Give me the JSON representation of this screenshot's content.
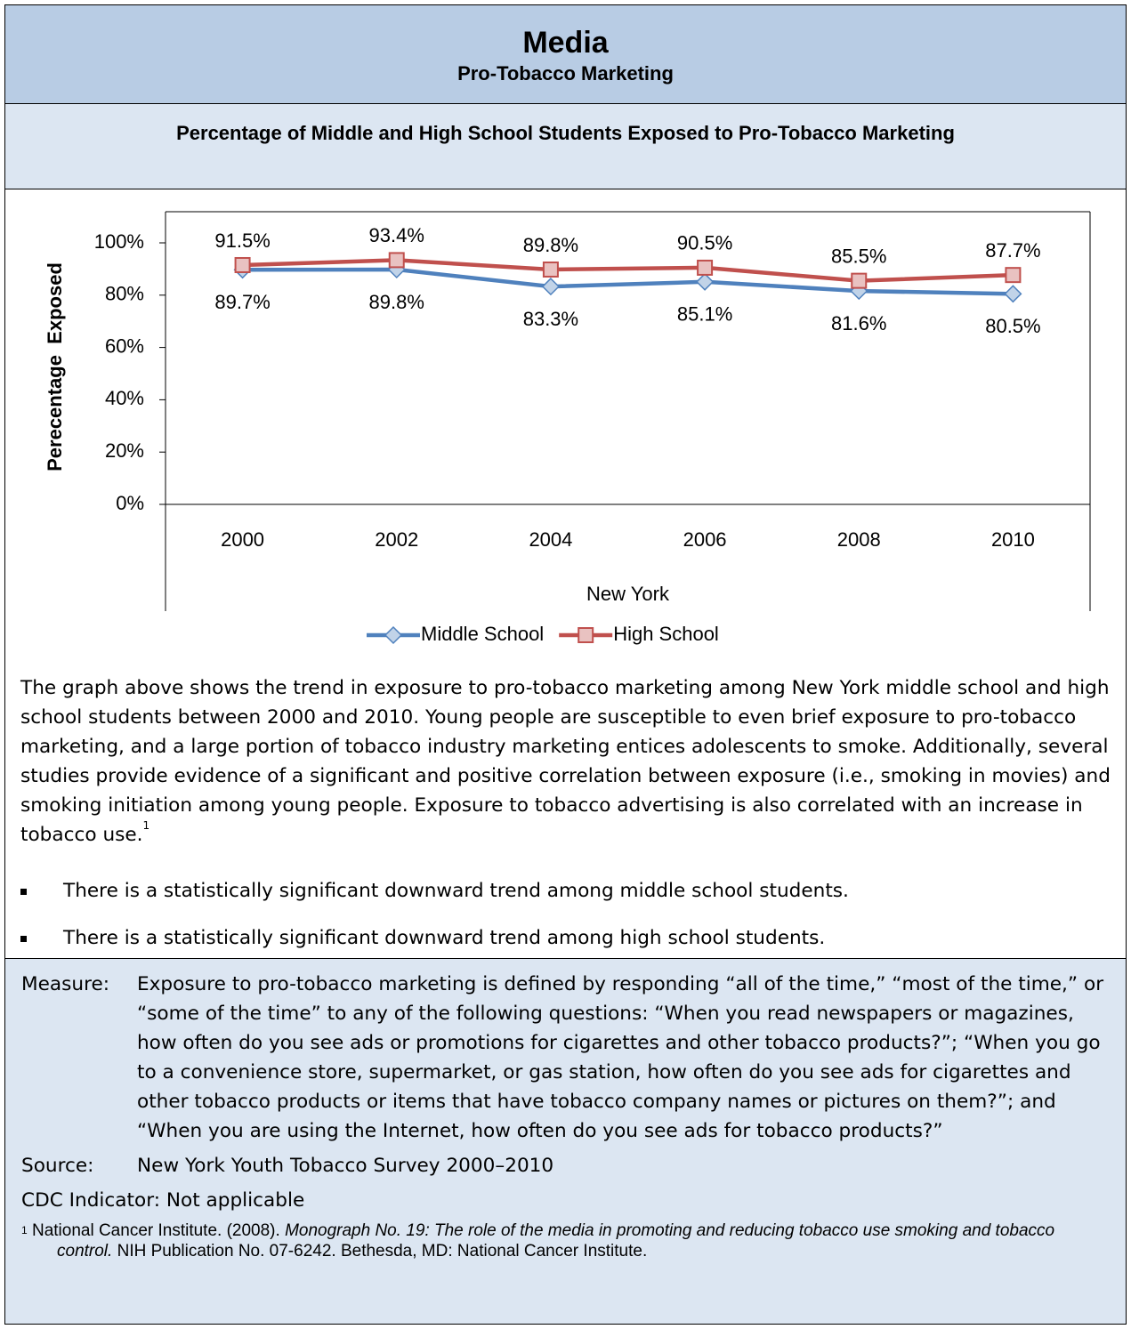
{
  "header": {
    "title": "Media",
    "subtitle": "Pro-Tobacco Marketing"
  },
  "chart_data": {
    "type": "line",
    "title": "Percentage of Middle and High School Students Exposed to Pro-Tobacco Marketing",
    "x_label": "New York",
    "y_label": "Perecentage  Exposed",
    "categories": [
      "2000",
      "2002",
      "2004",
      "2006",
      "2008",
      "2010"
    ],
    "series": [
      {
        "name": "Middle School",
        "color": "#4f81bd",
        "values": [
          89.7,
          89.8,
          83.3,
          85.1,
          81.6,
          80.5
        ],
        "value_labels": [
          "89.7%",
          "89.8%",
          "83.3%",
          "85.1%",
          "81.6%",
          "80.5%"
        ]
      },
      {
        "name": "High School",
        "color": "#c0504d",
        "values": [
          91.5,
          93.4,
          89.8,
          90.5,
          85.5,
          87.7
        ],
        "value_labels": [
          "91.5%",
          "93.4%",
          "89.8%",
          "90.5%",
          "85.5%",
          "87.7%"
        ]
      }
    ],
    "ylim": [
      0,
      100
    ],
    "yticks": [
      {
        "value": 0,
        "label": "0%"
      },
      {
        "value": 20,
        "label": "20%"
      },
      {
        "value": 40,
        "label": "40%"
      },
      {
        "value": 60,
        "label": "60%"
      },
      {
        "value": 80,
        "label": "80%"
      },
      {
        "value": 100,
        "label": "100%"
      }
    ],
    "legend": "bottom"
  },
  "body": {
    "paragraph": "The graph above shows the trend in exposure to pro-tobacco marketing among New York middle school and high school students between 2000 and 2010. Young people are susceptible to even brief exposure to pro-tobacco marketing, and a large portion of tobacco industry marketing entices adolescents to smoke. Additionally, several studies provide evidence of a significant and positive correlation between exposure (i.e., smoking in movies) and smoking initiation among young people. Exposure to tobacco advertising is also correlated with an increase in tobacco use.",
    "footnote_ref": "1",
    "bullets": [
      "There is a statistically significant downward trend among middle school students.",
      "There is a statistically significant downward trend among high school students."
    ]
  },
  "notes": {
    "measure_label": "Measure:",
    "measure": "Exposure to pro-tobacco marketing is defined by responding “all of the time,” “most of the time,” or “some of the time” to any of the following questions: “When you read newspapers or magazines, how often do you see ads or promotions for cigarettes and other tobacco products?”; “When you go to a convenience store, supermarket, or gas station, how often do you see ads for cigarettes and other tobacco products or items that have tobacco company names or pictures on them?”; and “When you are using the Internet, how often do you see ads for tobacco products?”",
    "source_label": "Source:",
    "source": "New York Youth Tobacco Survey 2000–2010",
    "cdc_label": "CDC Indicator:",
    "cdc": "Not applicable",
    "footnote": {
      "marker": "1",
      "text_before": "National Cancer Institute. (2008). ",
      "title": "Monograph No. 19: The role of the media in promoting and reducing tobacco use smoking and tobacco control.",
      "text_after": " NIH Publication No. 07-6242. Bethesda, MD: National Cancer Institute."
    }
  }
}
